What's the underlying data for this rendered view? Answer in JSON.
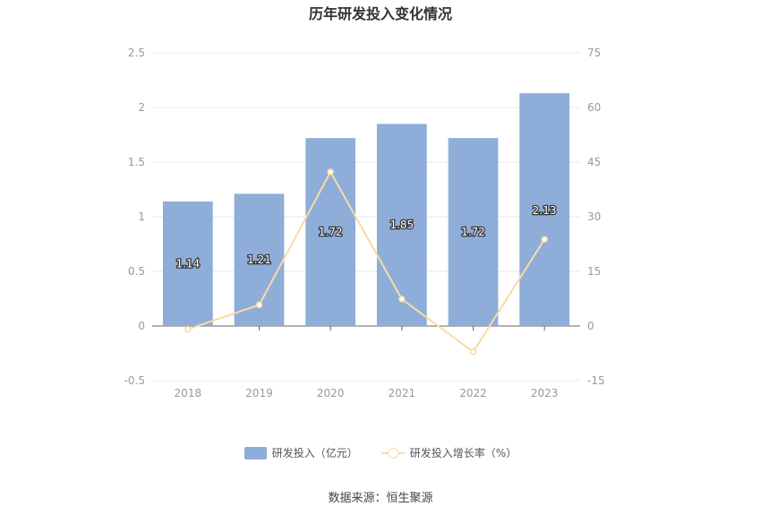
{
  "title": "历年研发投入变化情况",
  "source": "数据来源：恒生聚源",
  "legend": {
    "bar_label": "研发投入（亿元）",
    "line_label": "研发投入增长率（%）"
  },
  "colors": {
    "bar": "#8eadd9",
    "line": "#f9dba3",
    "grid": "#e8e8e8",
    "axis": "#999999"
  },
  "chart_data": {
    "type": "bar",
    "categories": [
      "2018",
      "2019",
      "2020",
      "2021",
      "2022",
      "2023"
    ],
    "series": [
      {
        "name": "研发投入（亿元）",
        "type": "bar",
        "axis": "left",
        "values": [
          1.14,
          1.21,
          1.72,
          1.85,
          1.72,
          2.13
        ],
        "data_labels": [
          "1.14",
          "1.21",
          "1.72",
          "1.85",
          "1.72",
          "2.13"
        ]
      },
      {
        "name": "研发投入增长率（%）",
        "type": "line",
        "axis": "right",
        "values": [
          -0.9,
          5.8,
          42.3,
          7.4,
          -7.1,
          23.8
        ]
      }
    ],
    "y_left": {
      "min": -0.5,
      "max": 2.5,
      "ticks": [
        "-0.5",
        "0",
        "0.5",
        "1",
        "1.5",
        "2",
        "2.5"
      ]
    },
    "y_right": {
      "min": -15,
      "max": 75,
      "ticks": [
        "-15",
        "0",
        "15",
        "30",
        "45",
        "60",
        "75"
      ]
    },
    "grid": true,
    "legend_position": "bottom"
  }
}
